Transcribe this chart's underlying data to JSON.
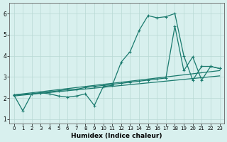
{
  "xlabel": "Humidex (Indice chaleur)",
  "bg_color": "#d8f0ee",
  "grid_color": "#b8d8d4",
  "line_color": "#1a7a6e",
  "xlim": [
    -0.5,
    23.5
  ],
  "ylim": [
    0.8,
    6.5
  ],
  "xticks": [
    0,
    1,
    2,
    3,
    4,
    5,
    6,
    7,
    8,
    9,
    10,
    11,
    12,
    13,
    14,
    15,
    16,
    17,
    18,
    19,
    20,
    21,
    22,
    23
  ],
  "yticks": [
    1,
    2,
    3,
    4,
    5,
    6
  ],
  "line1": {
    "x": [
      0,
      1,
      2,
      3,
      4,
      5,
      6,
      7,
      8,
      9,
      10,
      11,
      12,
      13,
      14,
      15,
      16,
      17,
      18,
      19,
      20,
      21,
      22,
      23
    ],
    "y": [
      2.15,
      1.4,
      2.2,
      2.25,
      2.2,
      2.1,
      2.05,
      2.1,
      2.2,
      1.65,
      2.55,
      2.6,
      3.7,
      4.2,
      5.2,
      5.9,
      5.8,
      5.85,
      6.0,
      4.0,
      2.85,
      3.5,
      3.5,
      3.4
    ]
  },
  "line2": {
    "x": [
      0,
      2,
      3,
      4,
      5,
      6,
      7,
      8,
      9,
      10,
      11,
      12,
      13,
      14,
      15,
      16,
      17,
      18,
      19,
      20,
      21,
      22,
      23
    ],
    "y": [
      2.15,
      2.2,
      2.25,
      2.3,
      2.35,
      2.4,
      2.42,
      2.5,
      2.55,
      2.6,
      2.65,
      2.7,
      2.75,
      2.8,
      2.85,
      2.9,
      2.95,
      5.4,
      3.3,
      3.95,
      2.85,
      3.5,
      3.4
    ]
  },
  "line3": {
    "x": [
      0,
      23
    ],
    "y": [
      2.1,
      3.05
    ]
  },
  "line4": {
    "x": [
      0,
      23
    ],
    "y": [
      2.15,
      3.3
    ]
  }
}
